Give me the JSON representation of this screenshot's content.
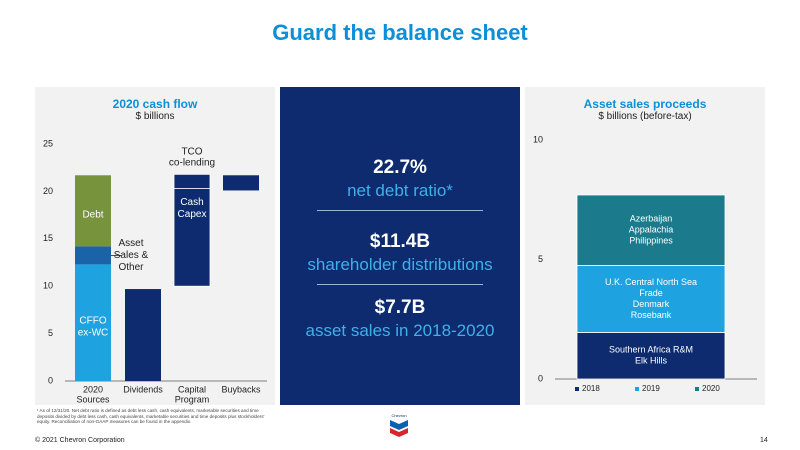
{
  "page": {
    "title": "Guard the balance sheet",
    "copyright": "© 2021 Chevron Corporation",
    "page_number": "14",
    "footnote": "¹ As of 12/31/20. Net debt ratio is defined as debt less cash, cash equivalents, marketable securities and time deposits divided by debt less cash, cash equivalents, marketable securities and time deposits plus stockholders' equity. Reconciliation of non-GAAP measures can be found in the appendix.",
    "logo_text": "Chevron",
    "colors": {
      "brand_blue": "#0b8fd9",
      "navy": "#0d2b6e",
      "teal": "#1b7a8c",
      "light_blue": "#1fa2e0",
      "olive": "#77933c",
      "mid_blue": "#1b63a9"
    }
  },
  "metrics": [
    {
      "value": "22.7%",
      "label": "net debt ratio*"
    },
    {
      "value": "$11.4B",
      "label": "shareholder distributions"
    },
    {
      "value": "$7.7B",
      "label": "asset sales in 2018-2020"
    }
  ],
  "chart_data": [
    {
      "type": "bar",
      "title": "2020 cash flow",
      "subtitle": "$ billions",
      "ylim": [
        0,
        25
      ],
      "yticks": [
        0,
        5,
        10,
        15,
        20,
        25
      ],
      "grid": false,
      "categories": [
        "2020 Sources",
        "Dividends",
        "Capital Program",
        "Buybacks"
      ],
      "segments": [
        {
          "category": "2020 Sources",
          "name": "CFFO ex-WC",
          "from": 0,
          "to": 12.3,
          "color": "#1fa2e0"
        },
        {
          "category": "2020 Sources",
          "name": "Asset Sales & Other",
          "from": 12.3,
          "to": 14.2,
          "color": "#1b63a9"
        },
        {
          "category": "2020 Sources",
          "name": "Debt",
          "from": 14.2,
          "to": 21.7,
          "color": "#77933c"
        },
        {
          "category": "Dividends",
          "name": "",
          "from": 0,
          "to": 9.7,
          "color": "#0d2b6e"
        },
        {
          "category": "Capital Program",
          "name": "Cash Capex",
          "from": 10.0,
          "to": 20.3,
          "color": "#0d2b6e"
        },
        {
          "category": "Capital Program",
          "name": "TCO co-lending",
          "from": 20.3,
          "to": 21.8,
          "color": "#0d2b6e"
        },
        {
          "category": "Buybacks",
          "name": "",
          "from": 20.1,
          "to": 21.7,
          "color": "#0d2b6e"
        }
      ],
      "annotations": [
        "TCO co-lending",
        "Asset Sales & Other"
      ]
    },
    {
      "type": "bar",
      "title": "Asset sales proceeds",
      "subtitle": "$ billions (before-tax)",
      "ylim": [
        0,
        10
      ],
      "yticks": [
        0,
        5,
        10
      ],
      "grid": false,
      "legend": "bottom",
      "series": [
        {
          "name": "2018",
          "value": 1.95,
          "labels": [
            "Southern Africa R&M",
            "Elk Hills"
          ],
          "color": "#0d2b6e"
        },
        {
          "name": "2019",
          "value": 2.8,
          "labels": [
            "U.K. Central North Sea",
            "Frade",
            "Denmark",
            "Rosebank"
          ],
          "color": "#1fa2e0"
        },
        {
          "name": "2020",
          "value": 2.95,
          "labels": [
            "Azerbaijan",
            "Appalachia",
            "Philippines"
          ],
          "color": "#1b7a8c"
        }
      ]
    }
  ]
}
